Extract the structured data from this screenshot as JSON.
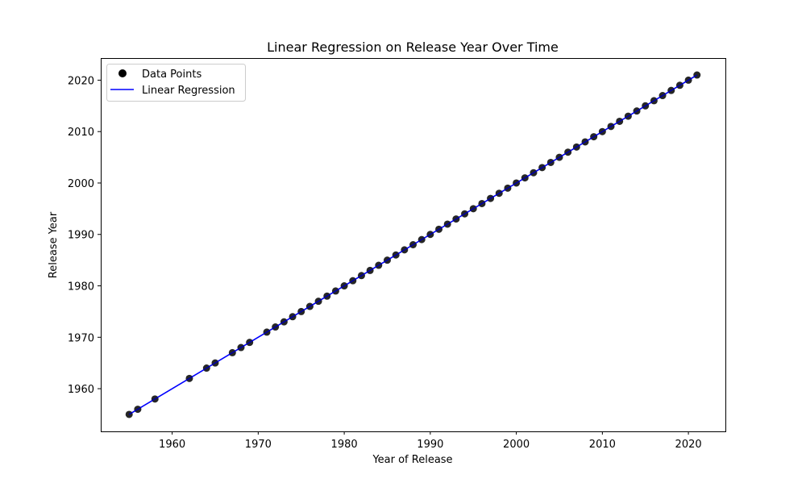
{
  "chart_data": {
    "type": "scatter",
    "title": "Linear Regression on Release Year Over Time",
    "xlabel": "Year of Release",
    "ylabel": "Release Year",
    "xlim": [
      1951.7,
      2024.3
    ],
    "ylim": [
      1951.7,
      2024.3
    ],
    "xticks": [
      1960,
      1970,
      1980,
      1990,
      2000,
      2010,
      2020
    ],
    "yticks": [
      1960,
      1970,
      1980,
      1990,
      2000,
      2010,
      2020
    ],
    "grid": false,
    "legend_position": "top-left",
    "series": [
      {
        "name": "Data Points",
        "kind": "scatter",
        "color": "#000000",
        "x": [
          1955,
          1956,
          1958,
          1962,
          1964,
          1965,
          1967,
          1968,
          1969,
          1971,
          1972,
          1973,
          1974,
          1975,
          1976,
          1977,
          1978,
          1979,
          1980,
          1981,
          1982,
          1983,
          1984,
          1985,
          1986,
          1987,
          1988,
          1989,
          1990,
          1991,
          1992,
          1993,
          1994,
          1995,
          1996,
          1997,
          1998,
          1999,
          2000,
          2001,
          2002,
          2003,
          2004,
          2005,
          2006,
          2007,
          2008,
          2009,
          2010,
          2011,
          2012,
          2013,
          2014,
          2015,
          2016,
          2017,
          2018,
          2019,
          2020,
          2021
        ],
        "y": [
          1955,
          1956,
          1958,
          1962,
          1964,
          1965,
          1967,
          1968,
          1969,
          1971,
          1972,
          1973,
          1974,
          1975,
          1976,
          1977,
          1978,
          1979,
          1980,
          1981,
          1982,
          1983,
          1984,
          1985,
          1986,
          1987,
          1988,
          1989,
          1990,
          1991,
          1992,
          1993,
          1994,
          1995,
          1996,
          1997,
          1998,
          1999,
          2000,
          2001,
          2002,
          2003,
          2004,
          2005,
          2006,
          2007,
          2008,
          2009,
          2010,
          2011,
          2012,
          2013,
          2014,
          2015,
          2016,
          2017,
          2018,
          2019,
          2020,
          2021
        ]
      },
      {
        "name": "Linear Regression",
        "kind": "line",
        "color": "#0000ff",
        "x": [
          1955,
          2021
        ],
        "y": [
          1955,
          2021
        ]
      }
    ]
  }
}
